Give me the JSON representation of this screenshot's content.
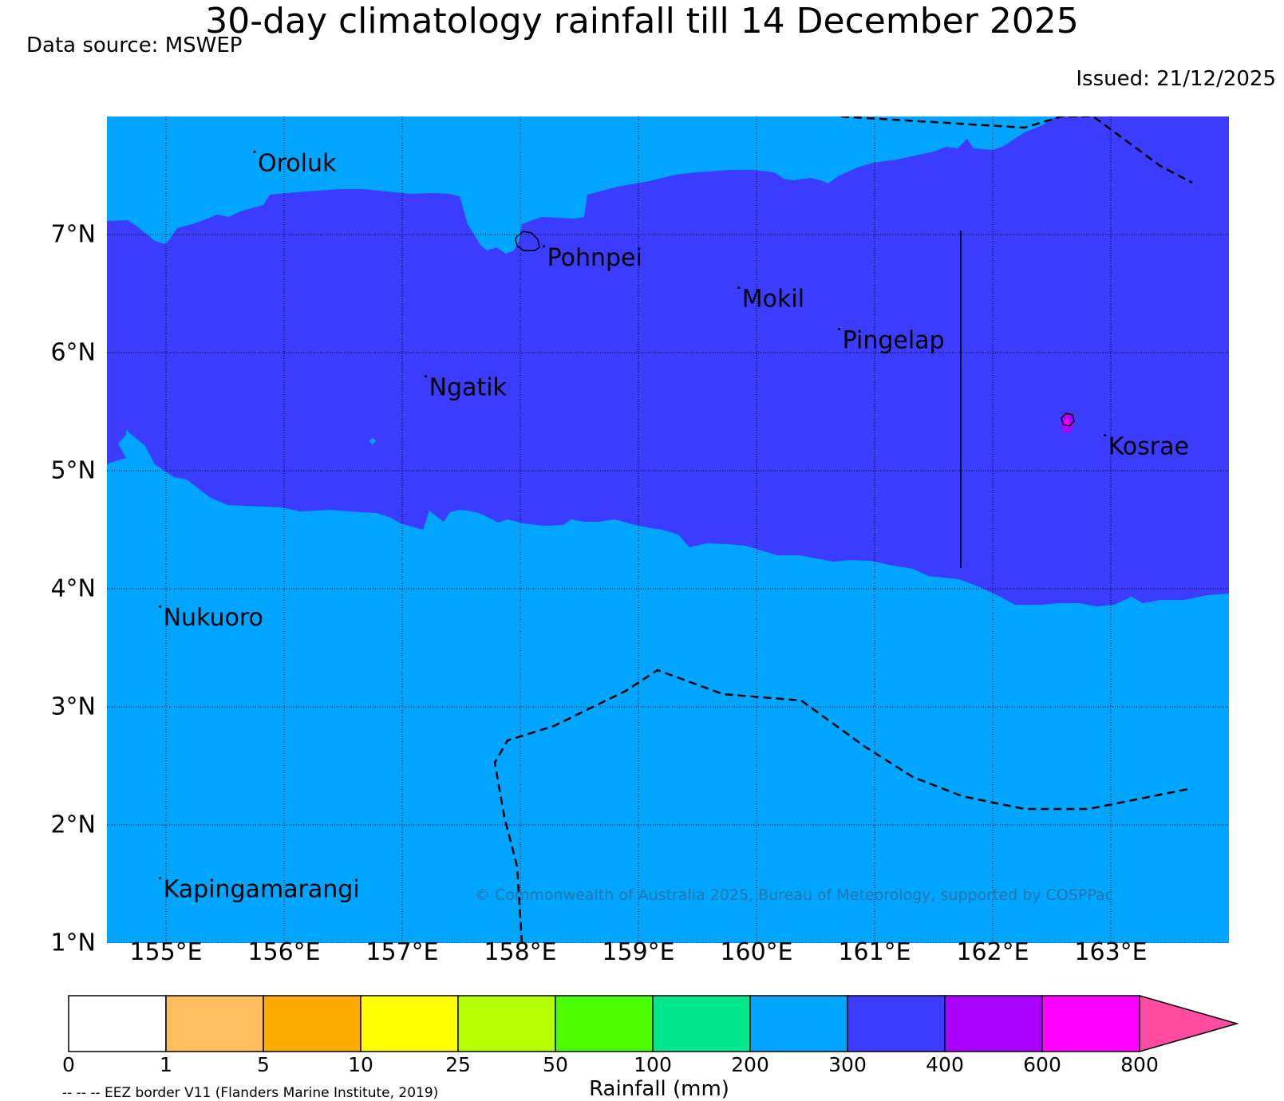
{
  "title": "30-day climatology rainfall till 14 December 2025",
  "data_source": "Data source: MSWEP",
  "issued": "Issued: 21/12/2025",
  "copyright": "© Commonwealth of Australia 2025, Bureau of Meteorology, supported by COSPPac",
  "eez_note": "-- -- -- EEZ border V11 (Flanders Marine Institute, 2019)",
  "map": {
    "lon_range": [
      154.5,
      164
    ],
    "lat_range": [
      1,
      8
    ],
    "lat_ticks": [
      {
        "value": 7,
        "label": "7°N"
      },
      {
        "value": 6,
        "label": "6°N"
      },
      {
        "value": 5,
        "label": "5°N"
      },
      {
        "value": 4,
        "label": "4°N"
      },
      {
        "value": 3,
        "label": "3°N"
      },
      {
        "value": 2,
        "label": "2°N"
      },
      {
        "value": 1,
        "label": "1°N"
      }
    ],
    "lon_ticks": [
      {
        "value": 155,
        "label": "155°E"
      },
      {
        "value": 156,
        "label": "156°E"
      },
      {
        "value": 157,
        "label": "157°E"
      },
      {
        "value": 158,
        "label": "158°E"
      },
      {
        "value": 159,
        "label": "159°E"
      },
      {
        "value": 160,
        "label": "160°E"
      },
      {
        "value": 161,
        "label": "161°E"
      },
      {
        "value": 162,
        "label": "162°E"
      },
      {
        "value": 163,
        "label": "163°E"
      }
    ],
    "places": [
      {
        "name": "Oroluk",
        "lon": 155.75,
        "lat": 7.7
      },
      {
        "name": "Pohnpei",
        "lon": 158.2,
        "lat": 6.9
      },
      {
        "name": "Mokil",
        "lon": 159.85,
        "lat": 6.55
      },
      {
        "name": "Pingelap",
        "lon": 160.7,
        "lat": 6.2
      },
      {
        "name": "Ngatik",
        "lon": 157.2,
        "lat": 5.8
      },
      {
        "name": "Kosrae",
        "lon": 162.95,
        "lat": 5.3
      },
      {
        "name": "Nukuoro",
        "lon": 154.95,
        "lat": 3.85
      },
      {
        "name": "Kapingamarangi",
        "lon": 154.95,
        "lat": 1.55
      }
    ]
  },
  "legend": {
    "title": "Rainfall (mm)",
    "tick_labels": [
      "0",
      "1",
      "5",
      "10",
      "25",
      "50",
      "100",
      "200",
      "300",
      "400",
      "600",
      "800"
    ],
    "bins": [
      {
        "range": "0-1",
        "color": "#ffffff"
      },
      {
        "range": "1-5",
        "color": "#ffbe5e"
      },
      {
        "range": "5-10",
        "color": "#ffaa00"
      },
      {
        "range": "10-25",
        "color": "#ffff00"
      },
      {
        "range": "25-50",
        "color": "#b4ff00"
      },
      {
        "range": "50-100",
        "color": "#4bff00"
      },
      {
        "range": "100-200",
        "color": "#00e68c"
      },
      {
        "range": "200-300",
        "color": "#00a5ff"
      },
      {
        "range": "300-400",
        "color": "#3c3cff"
      },
      {
        "range": "400-600",
        "color": "#aa00ff"
      },
      {
        "range": "600-800",
        "color": "#ff00ff"
      },
      {
        "range": ">800",
        "color": "#ff4ba0"
      }
    ]
  }
}
